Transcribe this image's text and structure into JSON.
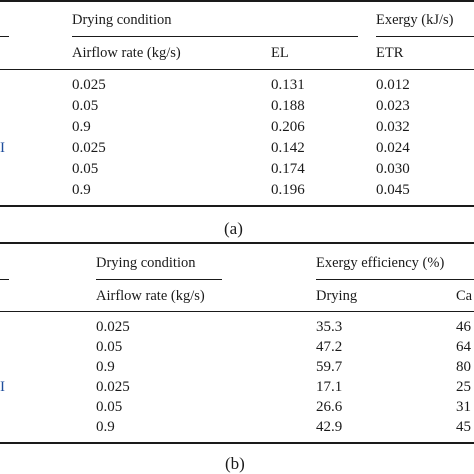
{
  "table_a": {
    "header": {
      "drying_condition": "Drying condition",
      "exergy": "Exergy (kJ/s)",
      "airflow_rate": "Airflow rate (kg/s)",
      "el": "EL",
      "etr": "ETR"
    },
    "side_mark": "I",
    "rows": [
      {
        "airflow": "0.025",
        "el": "0.131",
        "etr": "0.012"
      },
      {
        "airflow": "0.05",
        "el": "0.188",
        "etr": "0.023"
      },
      {
        "airflow": "0.9",
        "el": "0.206",
        "etr": "0.032"
      },
      {
        "airflow": "0.025",
        "el": "0.142",
        "etr": "0.024"
      },
      {
        "airflow": "0.05",
        "el": "0.174",
        "etr": "0.030"
      },
      {
        "airflow": "0.9",
        "el": "0.196",
        "etr": "0.045"
      }
    ],
    "caption": "(a)"
  },
  "table_b": {
    "header": {
      "drying_condition": "Drying condition",
      "exergy_efficiency": "Exergy efficiency (%)",
      "airflow_rate": "Airflow rate (kg/s)",
      "drying": "Drying",
      "ca": "Ca"
    },
    "side_mark": "I",
    "rows": [
      {
        "airflow": "0.025",
        "drying": "35.3",
        "ca": "46"
      },
      {
        "airflow": "0.05",
        "drying": "47.2",
        "ca": "64"
      },
      {
        "airflow": "0.9",
        "drying": "59.7",
        "ca": "80"
      },
      {
        "airflow": "0.025",
        "drying": "17.1",
        "ca": "25"
      },
      {
        "airflow": "0.05",
        "drying": "26.6",
        "ca": "31"
      },
      {
        "airflow": "0.9",
        "drying": "42.9",
        "ca": "45"
      }
    ],
    "caption": "(b)"
  },
  "colors": {
    "text": "#1a1a1a",
    "side_mark": "#1f4e9c"
  }
}
